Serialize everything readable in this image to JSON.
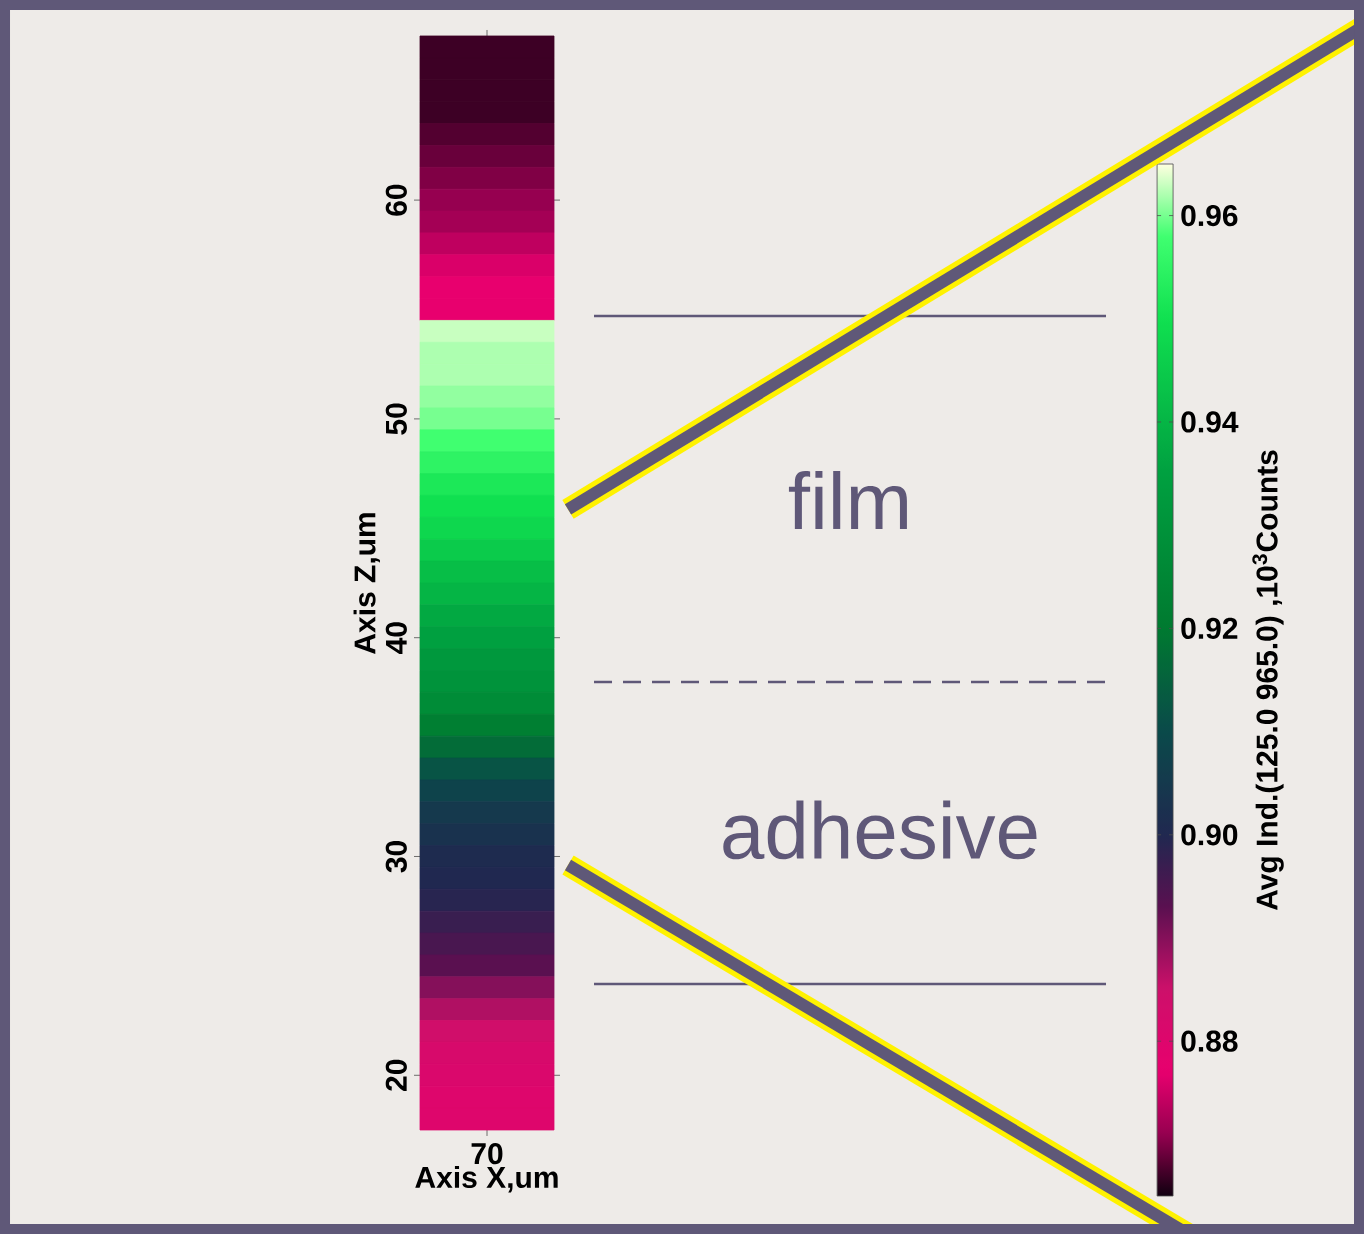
{
  "chart_data": {
    "type": "heatmap",
    "xlabel": "Axis X,um",
    "ylabel": "Axis Z,um",
    "clabel": "Avg Ind.(125.0 965.0) ,10$^{3}$Counts",
    "categories": [
      "70"
    ],
    "y_categories": [
      null,
      null,
      null,
      null,
      null,
      null,
      null,
      "60",
      null,
      null,
      null,
      null,
      null,
      null,
      null,
      null,
      null,
      "50",
      null,
      null,
      null,
      null,
      null,
      null,
      null,
      null,
      null,
      "40",
      null,
      null,
      null,
      null,
      null,
      null,
      null,
      null,
      null,
      "30",
      null,
      null,
      null,
      null,
      null,
      null,
      null,
      null,
      null,
      "20",
      null,
      null
    ],
    "cells": [
      [
        0.867
      ],
      [
        0.867
      ],
      [
        0.867
      ],
      [
        0.867
      ],
      [
        0.868
      ],
      [
        0.869
      ],
      [
        0.87
      ],
      [
        0.871
      ],
      [
        0.872
      ],
      [
        0.874
      ],
      [
        0.876
      ],
      [
        0.877
      ],
      [
        0.877
      ],
      [
        0.963
      ],
      [
        0.962
      ],
      [
        0.962
      ],
      [
        0.961
      ],
      [
        0.96
      ],
      [
        0.958
      ],
      [
        0.955
      ],
      [
        0.952
      ],
      [
        0.95
      ],
      [
        0.948
      ],
      [
        0.945
      ],
      [
        0.942
      ],
      [
        0.94
      ],
      [
        0.937
      ],
      [
        0.935
      ],
      [
        0.932
      ],
      [
        0.93
      ],
      [
        0.927
      ],
      [
        0.922
      ],
      [
        0.917
      ],
      [
        0.912
      ],
      [
        0.908
      ],
      [
        0.905
      ],
      [
        0.903
      ],
      [
        0.901
      ],
      [
        0.9
      ],
      [
        0.899
      ],
      [
        0.897
      ],
      [
        0.895
      ],
      [
        0.893
      ],
      [
        0.89
      ],
      [
        0.887
      ],
      [
        0.884
      ],
      [
        0.882
      ],
      [
        0.881
      ],
      [
        0.88
      ],
      [
        0.88
      ]
    ],
    "clim": [
      0.865,
      0.965
    ],
    "cticks": [
      0.88,
      {
        "value": 0.9,
        "label": "0.90"
      },
      0.92,
      0.94,
      0.96
    ],
    "annotations": [
      "film",
      "adhesive"
    ]
  }
}
